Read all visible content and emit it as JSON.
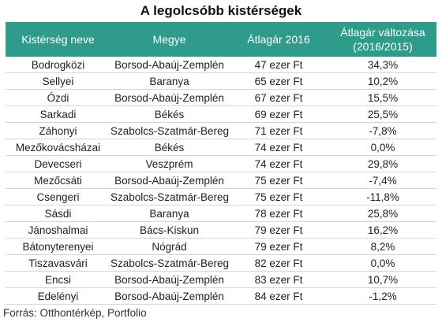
{
  "title": "A legolcsóbb kistérségek",
  "headers": {
    "col1": "Kistérség neve",
    "col2": "Megye",
    "col3": "Átlagár 2016",
    "col4_line1": "Átlagár változása",
    "col4_line2": "(2016/2015)"
  },
  "rows": [
    {
      "name": "Bodrogközi",
      "county": "Borsod-Abaúj-Zemplén",
      "price": "47 ezer Ft",
      "change": "34,3%"
    },
    {
      "name": "Sellyei",
      "county": "Baranya",
      "price": "65 ezer Ft",
      "change": "10,2%"
    },
    {
      "name": "Ózdi",
      "county": "Borsod-Abaúj-Zemplén",
      "price": "67 ezer Ft",
      "change": "15,5%"
    },
    {
      "name": "Sarkadi",
      "county": "Békés",
      "price": "69 ezer Ft",
      "change": "25,5%"
    },
    {
      "name": "Záhonyi",
      "county": "Szabolcs-Szatmár-Bereg",
      "price": "71 ezer Ft",
      "change": "-7,8%"
    },
    {
      "name": "Mezőkovácsházai",
      "county": "Békés",
      "price": "74 ezer Ft",
      "change": "0,0%"
    },
    {
      "name": "Devecseri",
      "county": "Veszprém",
      "price": "74 ezer Ft",
      "change": "29,8%"
    },
    {
      "name": "Mezőcsáti",
      "county": "Borsod-Abaúj-Zemplén",
      "price": "75 ezer Ft",
      "change": "-7,4%"
    },
    {
      "name": "Csengeri",
      "county": "Szabolcs-Szatmár-Bereg",
      "price": "75 ezer Ft",
      "change": "-11,8%"
    },
    {
      "name": "Sásdi",
      "county": "Baranya",
      "price": "78 ezer Ft",
      "change": "25,8%"
    },
    {
      "name": "Jánoshalmai",
      "county": "Bács-Kiskun",
      "price": "79 ezer Ft",
      "change": "16,2%"
    },
    {
      "name": "Bátonyterenyei",
      "county": "Nógrád",
      "price": "79 ezer Ft",
      "change": "8,2%"
    },
    {
      "name": "Tiszavasvári",
      "county": "Szabolcs-Szatmár-Bereg",
      "price": "82 ezer Ft",
      "change": "0,0%"
    },
    {
      "name": "Encsi",
      "county": "Borsod-Abaúj-Zemplén",
      "price": "83 ezer Ft",
      "change": "10,7%"
    },
    {
      "name": "Edelényi",
      "county": "Borsod-Abaúj-Zemplén",
      "price": "84 ezer Ft",
      "change": "-1,2%"
    }
  ],
  "source": "Forrás: Otthontérkép, Portfolio",
  "colors": {
    "header_bg": "#2f9b8a",
    "header_text": "#ffffff"
  }
}
